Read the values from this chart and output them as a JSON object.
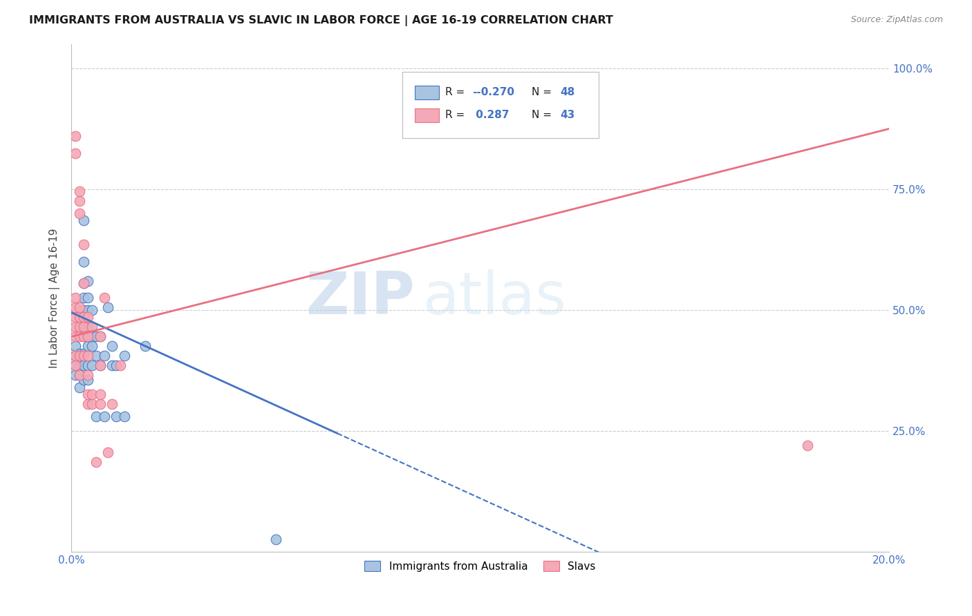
{
  "title": "IMMIGRANTS FROM AUSTRALIA VS SLAVIC IN LABOR FORCE | AGE 16-19 CORRELATION CHART",
  "source": "Source: ZipAtlas.com",
  "ylabel": "In Labor Force | Age 16-19",
  "legend_blue_label": "Immigrants from Australia",
  "legend_pink_label": "Slavs",
  "blue_color": "#a8c4e0",
  "pink_color": "#f4a8b8",
  "blue_line_color": "#4472c4",
  "pink_line_color": "#e87080",
  "blue_scatter": [
    [
      0.001,
      0.365
    ],
    [
      0.001,
      0.385
    ],
    [
      0.001,
      0.405
    ],
    [
      0.001,
      0.425
    ],
    [
      0.002,
      0.34
    ],
    [
      0.002,
      0.365
    ],
    [
      0.002,
      0.385
    ],
    [
      0.002,
      0.41
    ],
    [
      0.002,
      0.45
    ],
    [
      0.002,
      0.46
    ],
    [
      0.003,
      0.355
    ],
    [
      0.003,
      0.385
    ],
    [
      0.003,
      0.41
    ],
    [
      0.003,
      0.445
    ],
    [
      0.003,
      0.47
    ],
    [
      0.003,
      0.5
    ],
    [
      0.003,
      0.525
    ],
    [
      0.003,
      0.555
    ],
    [
      0.003,
      0.6
    ],
    [
      0.003,
      0.685
    ],
    [
      0.004,
      0.355
    ],
    [
      0.004,
      0.385
    ],
    [
      0.004,
      0.425
    ],
    [
      0.004,
      0.445
    ],
    [
      0.004,
      0.465
    ],
    [
      0.004,
      0.5
    ],
    [
      0.004,
      0.525
    ],
    [
      0.004,
      0.56
    ],
    [
      0.005,
      0.385
    ],
    [
      0.005,
      0.425
    ],
    [
      0.005,
      0.445
    ],
    [
      0.005,
      0.5
    ],
    [
      0.006,
      0.28
    ],
    [
      0.006,
      0.405
    ],
    [
      0.006,
      0.445
    ],
    [
      0.007,
      0.385
    ],
    [
      0.007,
      0.445
    ],
    [
      0.008,
      0.28
    ],
    [
      0.008,
      0.405
    ],
    [
      0.009,
      0.505
    ],
    [
      0.01,
      0.385
    ],
    [
      0.01,
      0.425
    ],
    [
      0.011,
      0.28
    ],
    [
      0.011,
      0.385
    ],
    [
      0.013,
      0.405
    ],
    [
      0.013,
      0.28
    ],
    [
      0.018,
      0.425
    ],
    [
      0.05,
      0.025
    ]
  ],
  "pink_scatter": [
    [
      0.001,
      0.385
    ],
    [
      0.001,
      0.405
    ],
    [
      0.001,
      0.445
    ],
    [
      0.001,
      0.465
    ],
    [
      0.001,
      0.485
    ],
    [
      0.001,
      0.505
    ],
    [
      0.001,
      0.525
    ],
    [
      0.001,
      0.825
    ],
    [
      0.001,
      0.86
    ],
    [
      0.002,
      0.365
    ],
    [
      0.002,
      0.405
    ],
    [
      0.002,
      0.445
    ],
    [
      0.002,
      0.465
    ],
    [
      0.002,
      0.485
    ],
    [
      0.002,
      0.505
    ],
    [
      0.002,
      0.7
    ],
    [
      0.002,
      0.725
    ],
    [
      0.002,
      0.745
    ],
    [
      0.003,
      0.405
    ],
    [
      0.003,
      0.445
    ],
    [
      0.003,
      0.465
    ],
    [
      0.003,
      0.485
    ],
    [
      0.003,
      0.555
    ],
    [
      0.003,
      0.635
    ],
    [
      0.004,
      0.305
    ],
    [
      0.004,
      0.325
    ],
    [
      0.004,
      0.365
    ],
    [
      0.004,
      0.405
    ],
    [
      0.004,
      0.445
    ],
    [
      0.004,
      0.485
    ],
    [
      0.005,
      0.305
    ],
    [
      0.005,
      0.325
    ],
    [
      0.005,
      0.465
    ],
    [
      0.006,
      0.185
    ],
    [
      0.007,
      0.305
    ],
    [
      0.007,
      0.325
    ],
    [
      0.007,
      0.385
    ],
    [
      0.007,
      0.445
    ],
    [
      0.008,
      0.525
    ],
    [
      0.009,
      0.205
    ],
    [
      0.01,
      0.305
    ],
    [
      0.012,
      0.385
    ],
    [
      0.18,
      0.22
    ]
  ],
  "blue_line_x0": 0.0,
  "blue_line_y0": 0.495,
  "blue_line_x1": 0.065,
  "blue_line_y1": 0.245,
  "blue_line_solid_end": 0.065,
  "blue_line_dash_end": 0.2,
  "pink_line_x0": 0.0,
  "pink_line_y0": 0.445,
  "pink_line_x1": 0.2,
  "pink_line_y1": 0.875,
  "xmin": 0.0,
  "xmax": 0.2,
  "ymin": 0.0,
  "ymax": 1.05,
  "watermark_zip": "ZIP",
  "watermark_atlas": "atlas",
  "background_color": "#ffffff",
  "grid_color": "#cccccc",
  "legend_R_blue": "-0.270",
  "legend_N_blue": "48",
  "legend_R_pink": "0.287",
  "legend_N_pink": "43"
}
